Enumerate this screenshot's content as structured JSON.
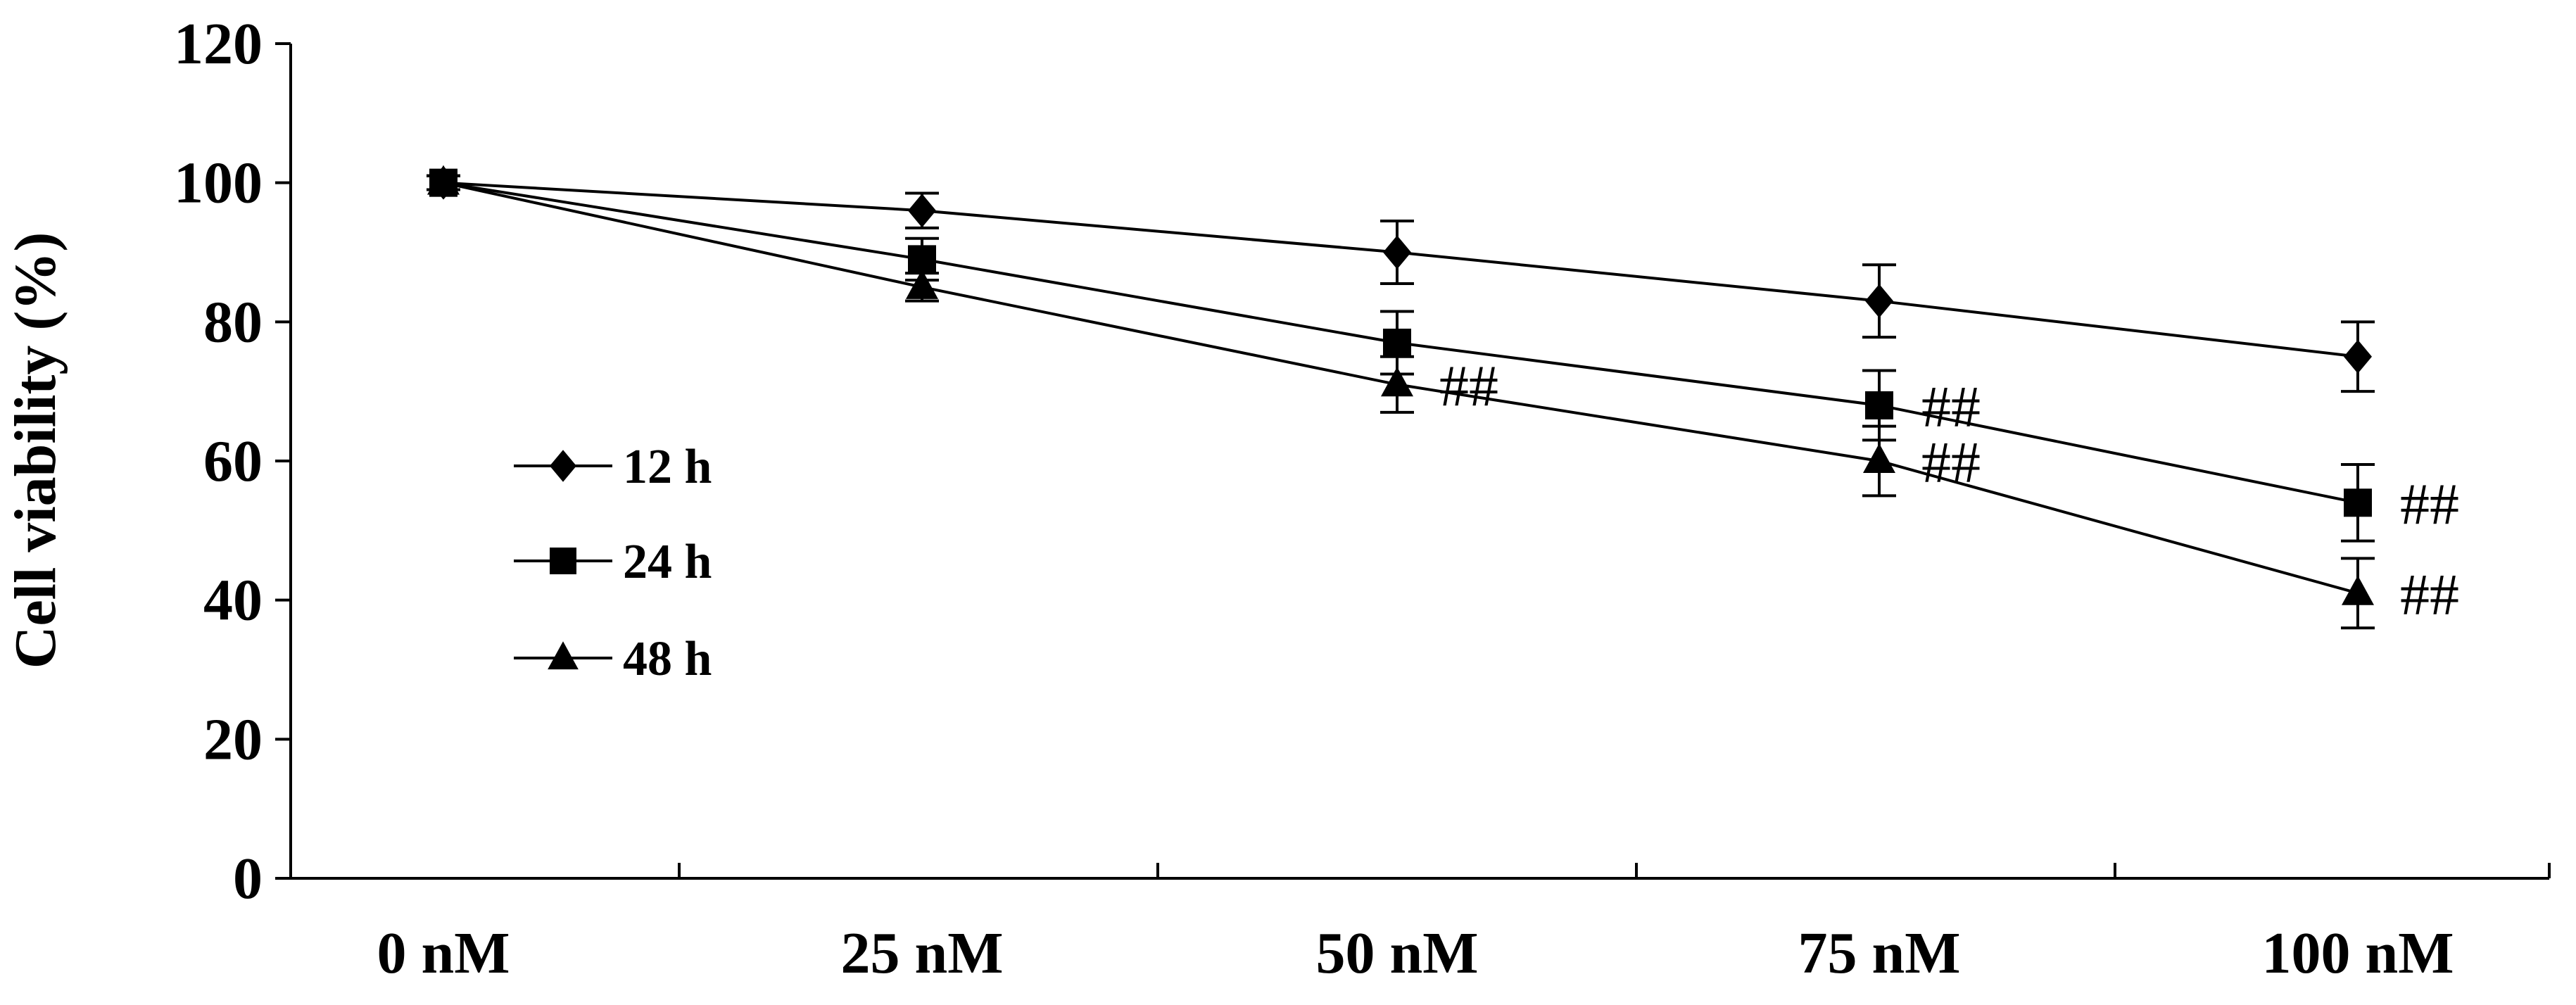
{
  "chart_data": {
    "type": "line",
    "title": "",
    "xlabel": "",
    "ylabel": "Cell viability (%)",
    "ylim": [
      0,
      120
    ],
    "yticks": [
      "0",
      "20",
      "40",
      "60",
      "80",
      "100",
      "120"
    ],
    "categories": [
      "0 nM",
      "25 nM",
      "50 nM",
      "75 nM",
      "100 nM"
    ],
    "grid": false,
    "legend": {
      "position": "middle-left",
      "entries": [
        "12 h",
        "24 h",
        "48 h"
      ]
    },
    "series": [
      {
        "name": "12 h",
        "marker": "diamond",
        "values": [
          100,
          96,
          90,
          83,
          75
        ],
        "errors": [
          1,
          2.5,
          4.5,
          5.2,
          5
        ]
      },
      {
        "name": "24 h",
        "marker": "square",
        "values": [
          100,
          89,
          77,
          68,
          54
        ],
        "errors": [
          1,
          3,
          4.5,
          5,
          5.5
        ]
      },
      {
        "name": "48 h",
        "marker": "triangle",
        "values": [
          100,
          85,
          71,
          60,
          41
        ],
        "errors": [
          1,
          2,
          4,
          5,
          5
        ]
      }
    ],
    "annotations": [
      {
        "text": "##",
        "category": "50 nM",
        "series": "48 h"
      },
      {
        "text": "##",
        "category": "75 nM",
        "series": "24 h"
      },
      {
        "text": "##",
        "category": "75 nM",
        "series": "48 h"
      },
      {
        "text": "##",
        "category": "100 nM",
        "series": "24 h"
      },
      {
        "text": "##",
        "category": "100 nM",
        "series": "48 h"
      }
    ]
  }
}
